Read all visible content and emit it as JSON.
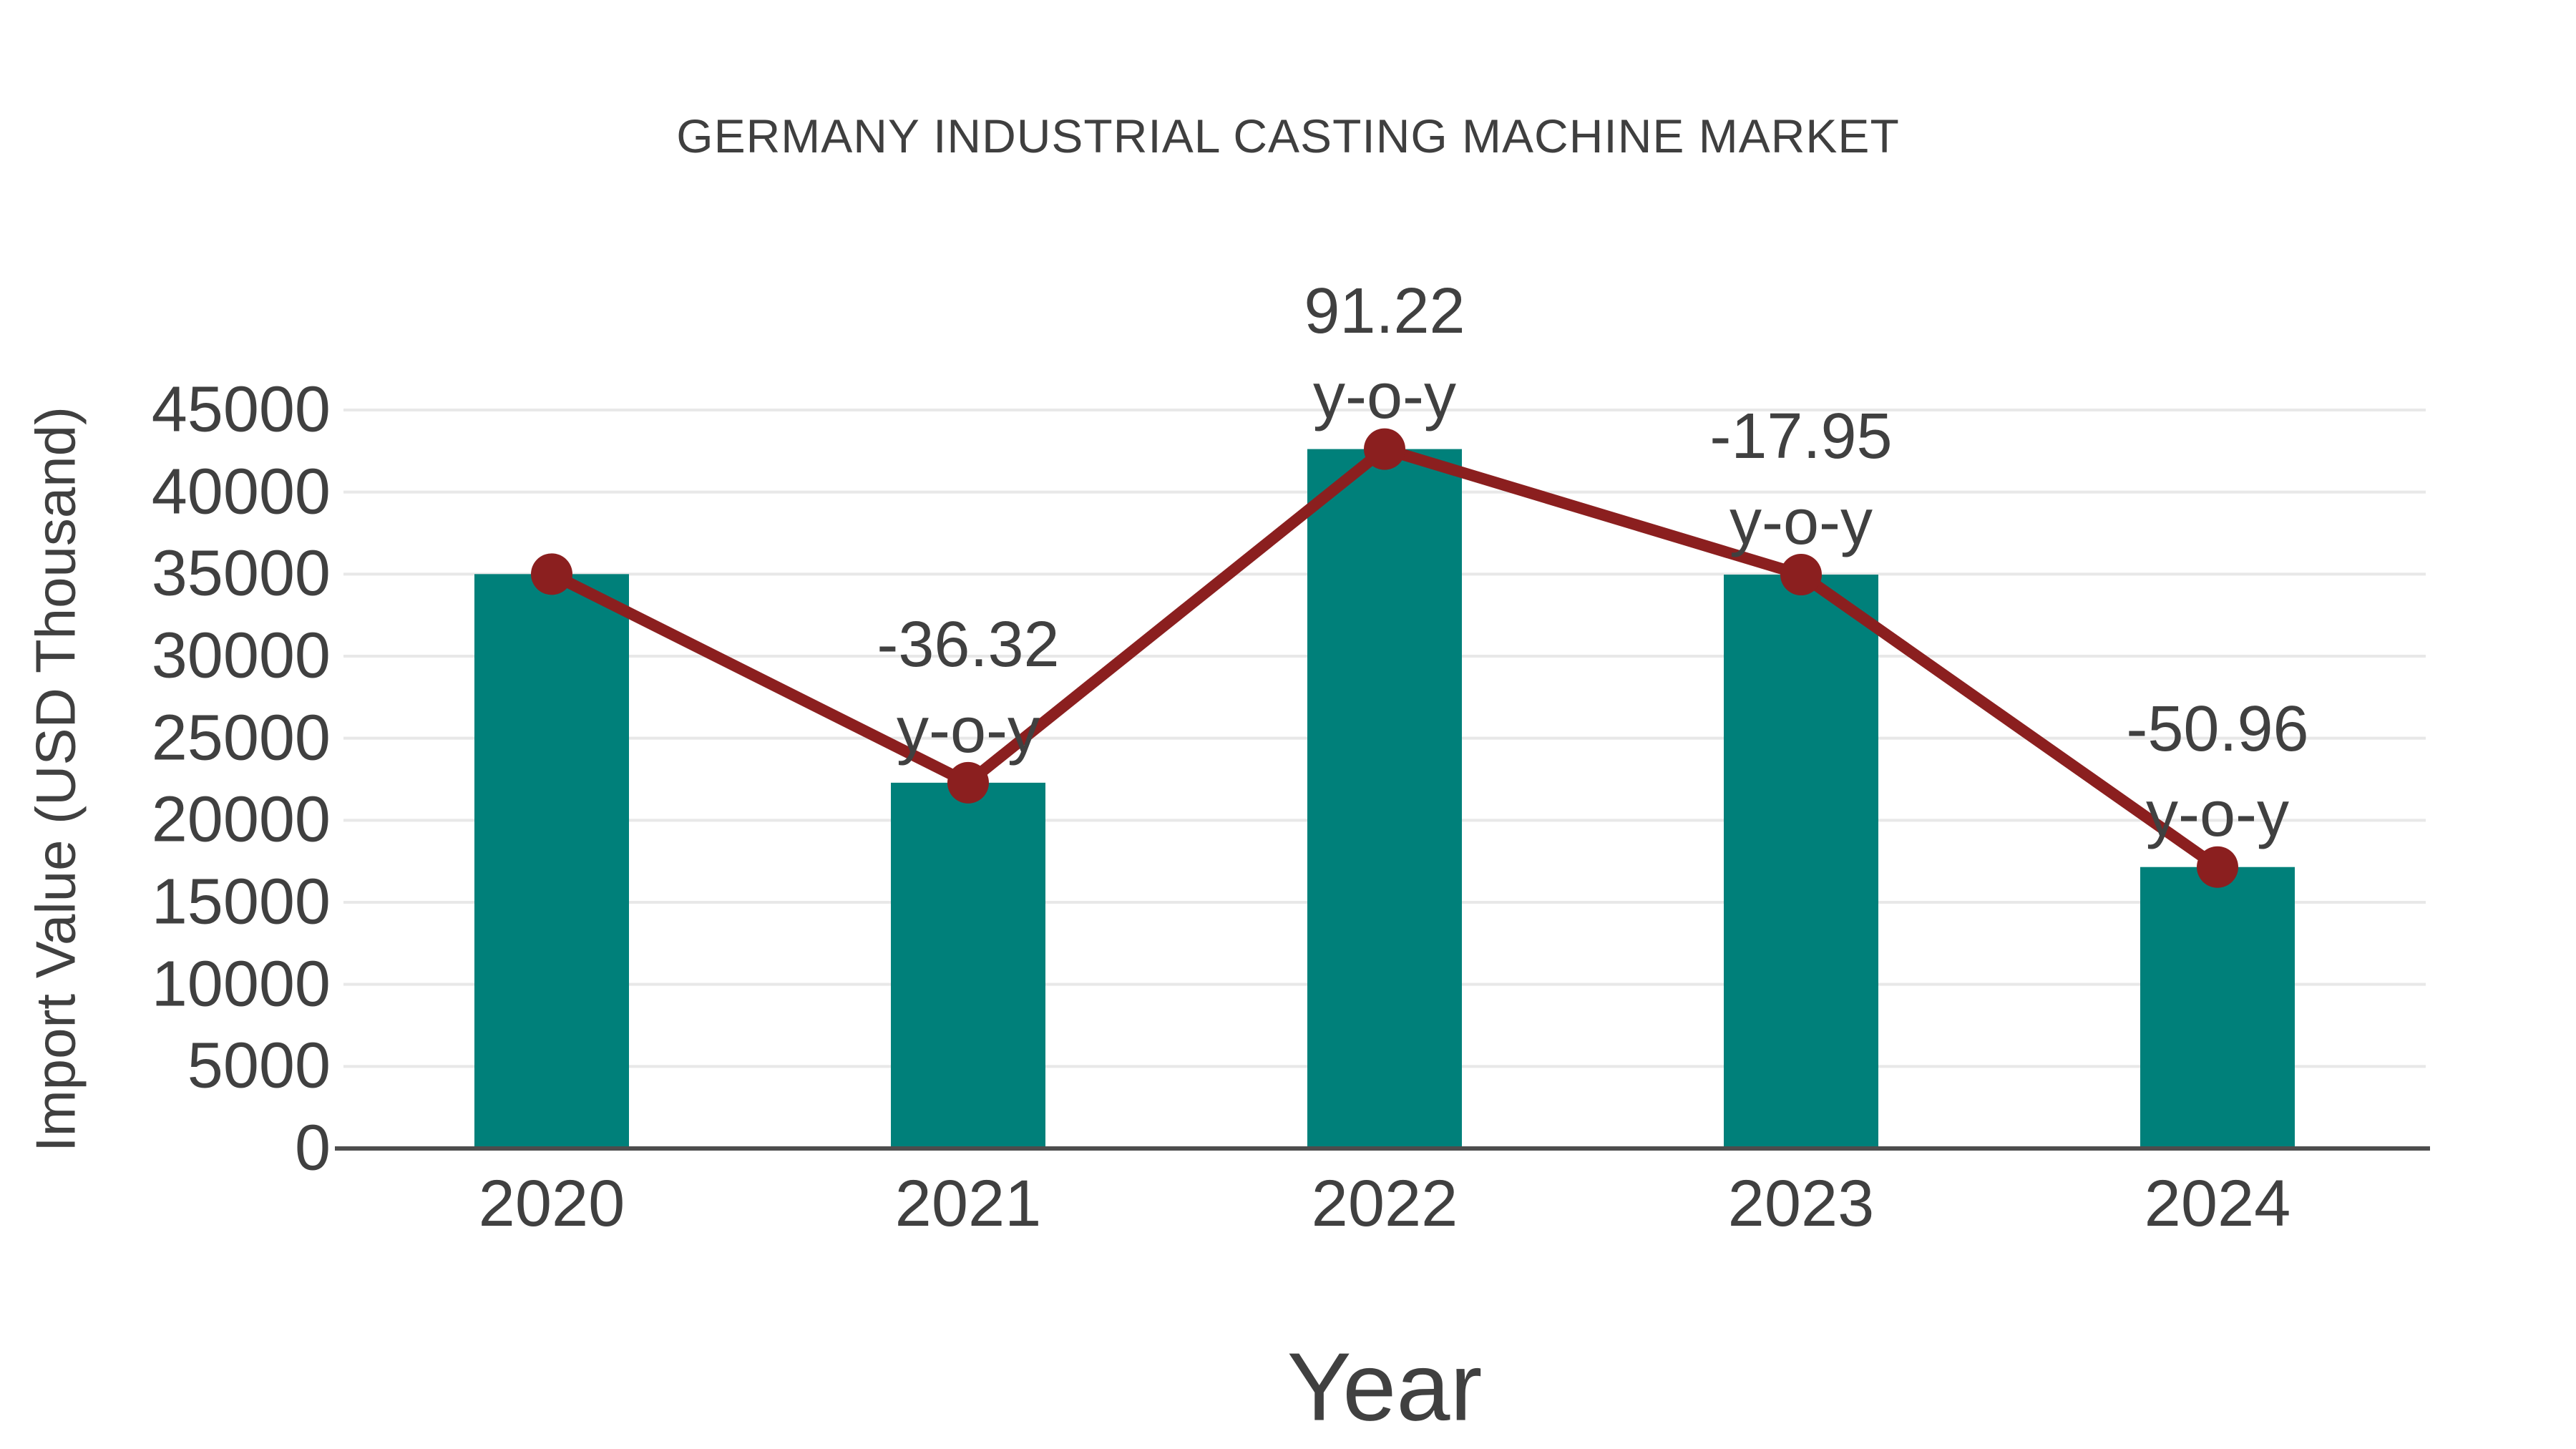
{
  "page": {
    "background": "#ffffff"
  },
  "chart_data": {
    "type": "bar",
    "title": "GERMANY INDUSTRIAL CASTING MACHINE MARKET",
    "xlabel": "Year",
    "ylabel": "Import Value (USD Thousand)",
    "categories": [
      "2020",
      "2021",
      "2022",
      "2023",
      "2024"
    ],
    "series": [
      {
        "name": "Import Value bars",
        "type": "bar",
        "values": [
          35000,
          22288,
          42620,
          34970,
          17150
        ]
      },
      {
        "name": "Import Value trend line",
        "type": "line",
        "values": [
          35000,
          22288,
          42620,
          34970,
          17150
        ]
      }
    ],
    "annotations": [
      {
        "category": "2021",
        "line1": "-36.32",
        "line2": "y-o-y"
      },
      {
        "category": "2022",
        "line1": "91.22",
        "line2": "y-o-y"
      },
      {
        "category": "2023",
        "line1": "-17.95",
        "line2": "y-o-y"
      },
      {
        "category": "2024",
        "line1": "-50.96",
        "line2": "y-o-y"
      }
    ],
    "ylim": [
      0,
      45000
    ],
    "ytick_step": 5000,
    "yticks": [
      0,
      5000,
      10000,
      15000,
      20000,
      25000,
      30000,
      35000,
      40000,
      45000
    ],
    "grid": "horizontal",
    "legend_position": "none",
    "colors": {
      "bar": "#00807a",
      "line": "#8b1f1f",
      "marker": "#8b1f1f",
      "text": "#404040",
      "grid": "#e8e8e8",
      "axis": "#4d4d4d",
      "background": "#ffffff"
    }
  }
}
